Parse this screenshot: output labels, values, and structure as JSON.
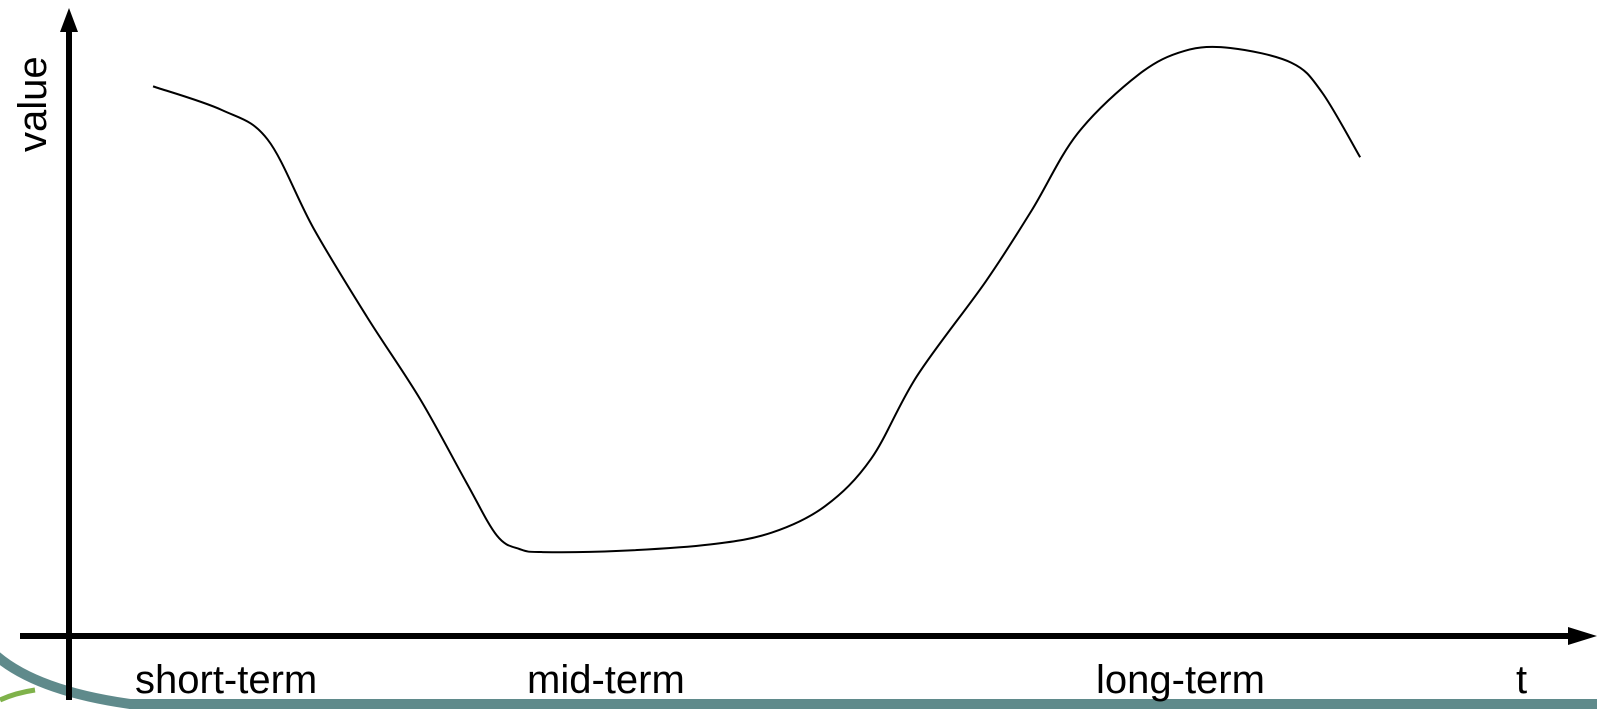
{
  "chart_data": {
    "type": "line",
    "title": "",
    "xlabel": "t",
    "ylabel": "value",
    "x_annotations": [
      "short-term",
      "mid-term",
      "long-term"
    ],
    "grid": false,
    "legend": "none",
    "axis_ticks": false,
    "xlim": [
      0,
      100
    ],
    "ylim": [
      0,
      100
    ],
    "series": [
      {
        "values": [
          {
            "x": 5.5,
            "y": 93
          },
          {
            "x": 10.0,
            "y": 89
          },
          {
            "x": 13.0,
            "y": 84
          },
          {
            "x": 16.0,
            "y": 69
          },
          {
            "x": 19.5,
            "y": 54
          },
          {
            "x": 23.0,
            "y": 40
          },
          {
            "x": 26.0,
            "y": 26
          },
          {
            "x": 28.0,
            "y": 17
          },
          {
            "x": 29.5,
            "y": 14.7
          },
          {
            "x": 31.0,
            "y": 14.2
          },
          {
            "x": 36.0,
            "y": 14.4
          },
          {
            "x": 42.0,
            "y": 15.5
          },
          {
            "x": 46.0,
            "y": 17.5
          },
          {
            "x": 49.5,
            "y": 22
          },
          {
            "x": 52.5,
            "y": 30
          },
          {
            "x": 55.5,
            "y": 44
          },
          {
            "x": 60.0,
            "y": 60
          },
          {
            "x": 63.0,
            "y": 72
          },
          {
            "x": 66.0,
            "y": 85
          },
          {
            "x": 70.0,
            "y": 95
          },
          {
            "x": 73.0,
            "y": 99
          },
          {
            "x": 76.0,
            "y": 99.5
          },
          {
            "x": 80.0,
            "y": 97
          },
          {
            "x": 82.0,
            "y": 92
          },
          {
            "x": 84.5,
            "y": 81
          }
        ]
      }
    ],
    "line_color": "#000000",
    "axis_color": "#000000"
  },
  "decor": {
    "swoosh_color": "#5f8a8b",
    "swoosh_accent": "#7fb24a"
  }
}
